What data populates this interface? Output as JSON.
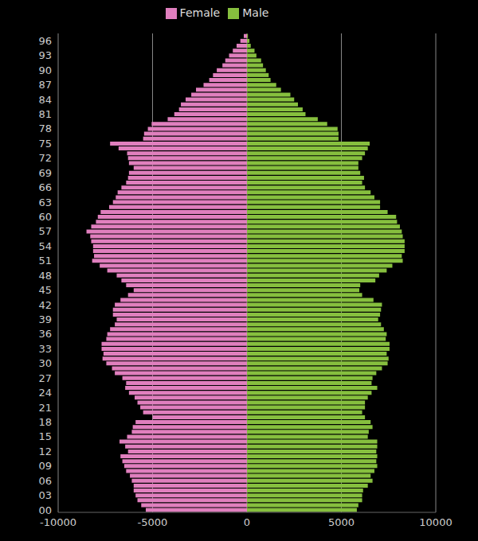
{
  "chart_data": {
    "type": "bar",
    "orientation": "horizontal",
    "stacked": true,
    "grid": true,
    "legend": "top",
    "categories": [
      "00",
      null,
      null,
      "03",
      null,
      null,
      "06",
      null,
      null,
      "09",
      null,
      null,
      "12",
      null,
      null,
      "15",
      null,
      null,
      "18",
      null,
      null,
      "21",
      null,
      null,
      "24",
      null,
      null,
      "27",
      null,
      null,
      "30",
      null,
      null,
      "33",
      null,
      null,
      "36",
      null,
      null,
      "39",
      null,
      null,
      "42",
      null,
      null,
      "45",
      null,
      null,
      "48",
      null,
      null,
      "51",
      null,
      null,
      "54",
      null,
      null,
      "57",
      null,
      null,
      "60",
      null,
      null,
      "63",
      null,
      null,
      "66",
      null,
      null,
      "69",
      null,
      null,
      "72",
      null,
      null,
      "75",
      null,
      null,
      "78",
      null,
      null,
      "81",
      null,
      null,
      "84",
      null,
      null,
      "87",
      null,
      null,
      "90",
      null,
      null,
      "93",
      null,
      null,
      "96",
      null
    ],
    "series": [
      {
        "name": "Female",
        "color": "#e07fbe",
        "values": [
          -5360,
          -5600,
          -5800,
          -5900,
          -6000,
          -6000,
          -6100,
          -6200,
          -6400,
          -6500,
          -6600,
          -6700,
          -6300,
          -6450,
          -6750,
          -6350,
          -6100,
          -6050,
          -5900,
          -5000,
          -5500,
          -5650,
          -5800,
          -5950,
          -6250,
          -6450,
          -6400,
          -6600,
          -7000,
          -7150,
          -7450,
          -7650,
          -7600,
          -7700,
          -7700,
          -7450,
          -7400,
          -7250,
          -7000,
          -6900,
          -7100,
          -7100,
          -7000,
          -6700,
          -6300,
          -6000,
          -6400,
          -6650,
          -6900,
          -7400,
          -7800,
          -8200,
          -8100,
          -8150,
          -8150,
          -8250,
          -8300,
          -8500,
          -8250,
          -8000,
          -7900,
          -7750,
          -7300,
          -7100,
          -6950,
          -6850,
          -6650,
          -6400,
          -6300,
          -6250,
          -6000,
          -6250,
          -6300,
          -6350,
          -6800,
          -7250,
          -5500,
          -5450,
          -5250,
          -5050,
          -4200,
          -3850,
          -3600,
          -3500,
          -3250,
          -2950,
          -2700,
          -2300,
          -2000,
          -1800,
          -1600,
          -1300,
          -1150,
          -950,
          -750,
          -550,
          -350,
          -170
        ]
      },
      {
        "name": "Male",
        "color": "#86bf3e",
        "values": [
          5820,
          5900,
          6100,
          6100,
          6150,
          6400,
          6650,
          6550,
          6750,
          6900,
          6850,
          6900,
          6850,
          6900,
          6900,
          6400,
          6450,
          6650,
          6550,
          6250,
          6100,
          6250,
          6250,
          6400,
          6600,
          6900,
          6600,
          6650,
          6850,
          7150,
          7450,
          7500,
          7400,
          7550,
          7550,
          7350,
          7400,
          7250,
          7100,
          6950,
          7050,
          7100,
          7150,
          6700,
          6100,
          5950,
          6000,
          6800,
          7000,
          7400,
          7700,
          8250,
          8200,
          8350,
          8350,
          8350,
          8250,
          8200,
          8100,
          7950,
          7900,
          7450,
          7050,
          7050,
          6750,
          6550,
          6250,
          6100,
          6200,
          6000,
          5900,
          5900,
          6100,
          6250,
          6400,
          6500,
          4850,
          4850,
          4800,
          4250,
          3750,
          3100,
          2950,
          2700,
          2500,
          2300,
          1800,
          1550,
          1250,
          1150,
          1000,
          850,
          750,
          500,
          400,
          200,
          130,
          50
        ]
      }
    ],
    "xlim": [
      -10000,
      10000
    ],
    "xticks": [
      -10000,
      -5000,
      0,
      5000,
      10000
    ]
  }
}
